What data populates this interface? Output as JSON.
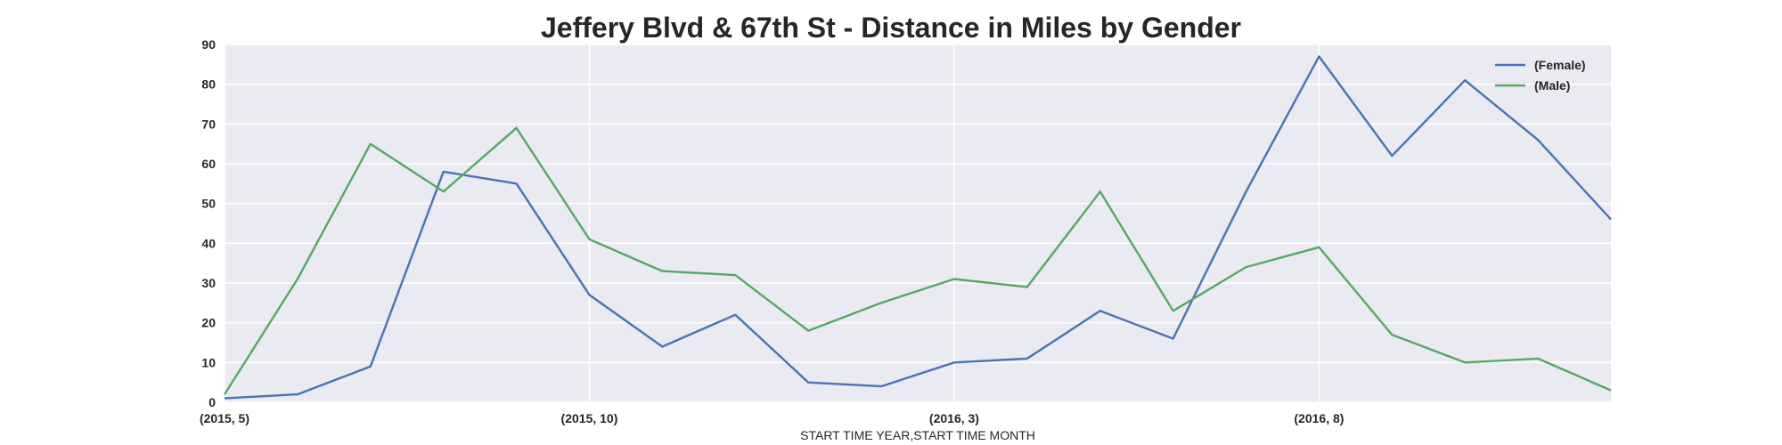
{
  "chart_data": {
    "type": "line",
    "title": "Jeffery Blvd & 67th St - Distance in Miles by Gender",
    "xlabel": "START TIME YEAR,START TIME MONTH",
    "ylabel": "",
    "ylim": [
      0,
      90
    ],
    "yticks": [
      0,
      10,
      20,
      30,
      40,
      50,
      60,
      70,
      80,
      90
    ],
    "x": [
      "(2015, 5)",
      "(2015, 6)",
      "(2015, 7)",
      "(2015, 8)",
      "(2015, 9)",
      "(2015, 10)",
      "(2015, 11)",
      "(2015, 12)",
      "(2016, 1)",
      "(2016, 2)",
      "(2016, 3)",
      "(2016, 4)",
      "(2016, 5)",
      "(2016, 6)",
      "(2016, 7)",
      "(2016, 8)",
      "(2016, 9)",
      "(2016, 10)",
      "(2016, 11)",
      "(2016, 12)"
    ],
    "xtick_labels": [
      {
        "index": 0,
        "label": "(2015, 5)"
      },
      {
        "index": 5,
        "label": "(2015, 10)"
      },
      {
        "index": 10,
        "label": "(2016, 3)"
      },
      {
        "index": 15,
        "label": "(2016, 8)"
      }
    ],
    "series": [
      {
        "name": "(Female)",
        "color": "#4c72b0",
        "values": [
          1,
          2,
          9,
          58,
          55,
          27,
          14,
          22,
          5,
          4,
          10,
          11,
          23,
          16,
          53,
          87,
          62,
          81,
          66,
          46
        ]
      },
      {
        "name": "(Male)",
        "color": "#55a868",
        "values": [
          2,
          31,
          65,
          53,
          69,
          41,
          33,
          32,
          18,
          25,
          31,
          29,
          53,
          23,
          34,
          39,
          17,
          10,
          11,
          3
        ]
      }
    ],
    "grid": true,
    "background_color": "#eaeaf2",
    "grid_color": "#ffffff",
    "legend_position": "top-right"
  }
}
